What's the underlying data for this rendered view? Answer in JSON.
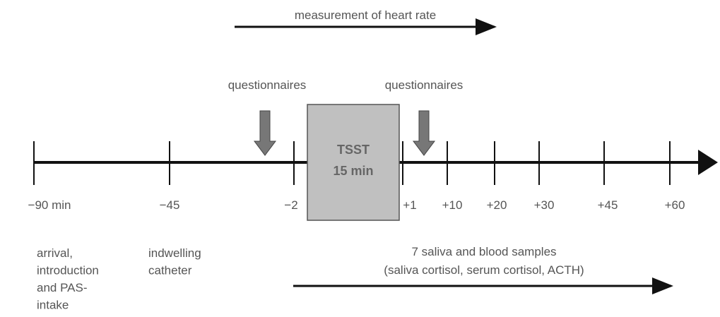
{
  "heart_rate": {
    "label": "measurement of heart rate"
  },
  "questionnaires": [
    "questionnaires",
    "questionnaires"
  ],
  "tsst": {
    "title": "TSST",
    "duration": "15 min"
  },
  "timeline": {
    "ticks": [
      "−90 min",
      "−45",
      "−2",
      "+1",
      "+10",
      "+20",
      "+30",
      "+45",
      "+60"
    ]
  },
  "phases": {
    "arrival": [
      "arrival,",
      "introduction",
      "and PAS-",
      "intake"
    ],
    "catheter": [
      "indwelling",
      "catheter"
    ],
    "samples": [
      "7 saliva and blood samples",
      "(saliva cortisol, serum cortisol, ACTH)"
    ]
  }
}
